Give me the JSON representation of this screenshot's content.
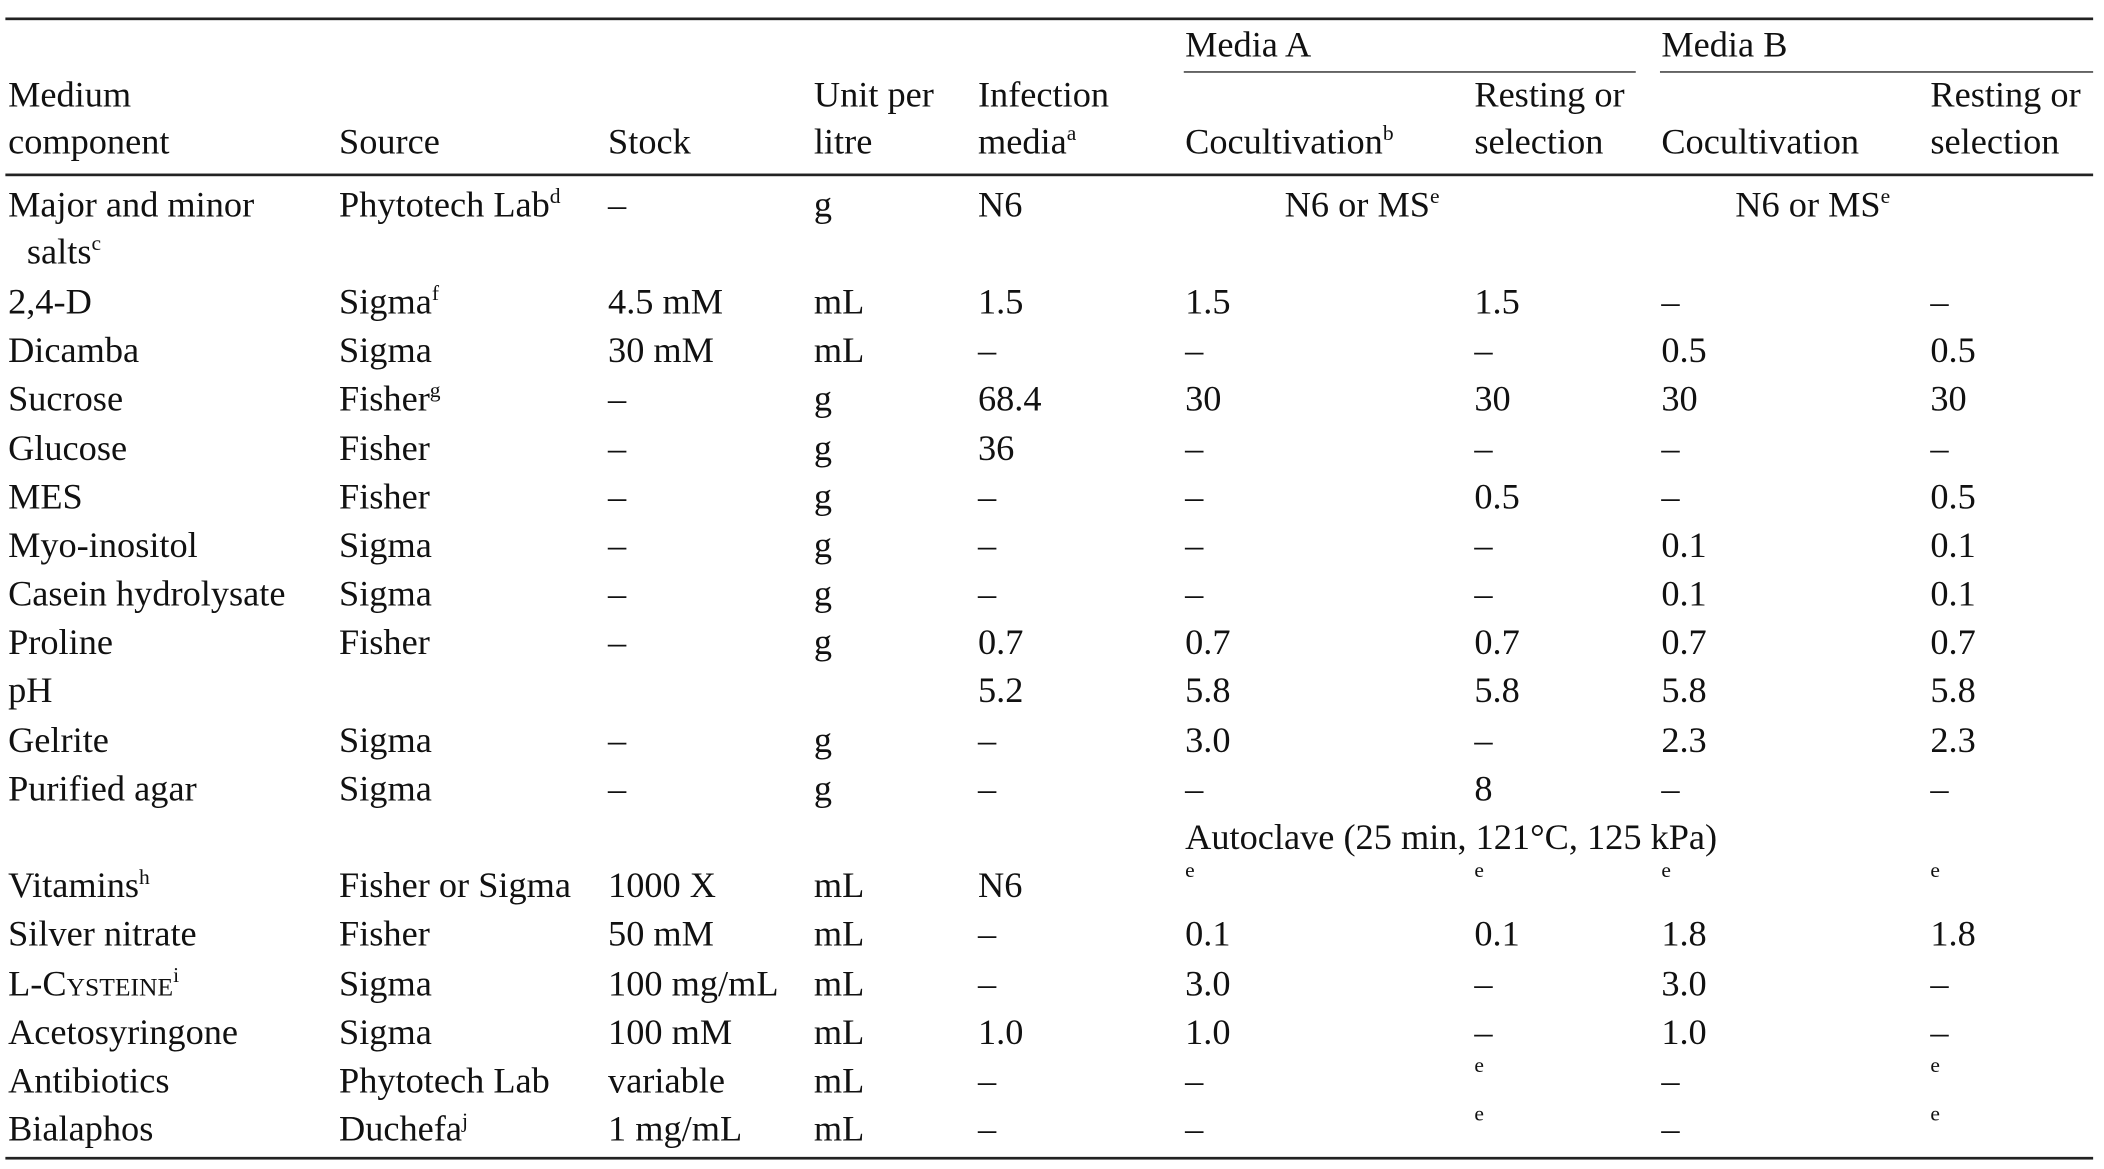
{
  "table": {
    "group_headers": {
      "media_a": "Media A",
      "media_b": "Media B"
    },
    "headers": {
      "medium_component": [
        "Medium",
        "component"
      ],
      "source": "Source",
      "stock": "Stock",
      "unit": [
        "Unit per",
        "litre"
      ],
      "infection": [
        "Infection",
        "media"
      ],
      "infection_sup": "a",
      "a_cocult": "Cocultivation",
      "a_cocult_sup": "b",
      "a_resting": [
        "Resting or",
        "selection"
      ],
      "b_cocult": "Cocultivation",
      "b_resting": [
        "Resting or",
        "selection"
      ]
    },
    "salts_row": {
      "component": [
        "Major and minor",
        "salts"
      ],
      "component_sup": "c",
      "source": "Phytotech Lab",
      "source_sup": "d",
      "stock": "–",
      "unit": "g",
      "infection": "N6",
      "media_a": "N6 or MS",
      "media_a_sup": "e",
      "media_b": "N6 or MS",
      "media_b_sup": "e"
    },
    "rows": [
      {
        "component": "2,4-D",
        "component_sup": "",
        "source": "Sigma",
        "source_sup": "f",
        "stock": "4.5 mM",
        "unit": "mL",
        "infection": "1.5",
        "a_cocult": "1.5",
        "a_resting": "1.5",
        "b_cocult": "–",
        "b_resting": "–"
      },
      {
        "component": "Dicamba",
        "component_sup": "",
        "source": "Sigma",
        "source_sup": "",
        "stock": "30 mM",
        "unit": "mL",
        "infection": "–",
        "a_cocult": "–",
        "a_resting": "–",
        "b_cocult": "0.5",
        "b_resting": "0.5"
      },
      {
        "component": "Sucrose",
        "component_sup": "",
        "source": "Fisher",
        "source_sup": "g",
        "stock": "–",
        "unit": "g",
        "infection": "68.4",
        "a_cocult": "30",
        "a_resting": "30",
        "b_cocult": "30",
        "b_resting": "30"
      },
      {
        "component": "Glucose",
        "component_sup": "",
        "source": "Fisher",
        "source_sup": "",
        "stock": "–",
        "unit": "g",
        "infection": "36",
        "a_cocult": "–",
        "a_resting": "–",
        "b_cocult": "–",
        "b_resting": "–"
      },
      {
        "component": "MES",
        "component_sup": "",
        "source": "Fisher",
        "source_sup": "",
        "stock": "–",
        "unit": "g",
        "infection": "–",
        "a_cocult": "–",
        "a_resting": "0.5",
        "b_cocult": "–",
        "b_resting": "0.5"
      },
      {
        "component": "Myo-inositol",
        "component_sup": "",
        "source": "Sigma",
        "source_sup": "",
        "stock": "–",
        "unit": "g",
        "infection": "–",
        "a_cocult": "–",
        "a_resting": "–",
        "b_cocult": "0.1",
        "b_resting": "0.1"
      },
      {
        "component": "Casein hydrolysate",
        "component_sup": "",
        "source": "Sigma",
        "source_sup": "",
        "stock": "–",
        "unit": "g",
        "infection": "–",
        "a_cocult": "–",
        "a_resting": "–",
        "b_cocult": "0.1",
        "b_resting": "0.1"
      },
      {
        "component": "Proline",
        "component_sup": "",
        "source": "Fisher",
        "source_sup": "",
        "stock": "–",
        "unit": "g",
        "infection": "0.7",
        "a_cocult": "0.7",
        "a_resting": "0.7",
        "b_cocult": "0.7",
        "b_resting": "0.7"
      },
      {
        "component": "pH",
        "component_sup": "",
        "source": "",
        "source_sup": "",
        "stock": "",
        "unit": "",
        "infection": "5.2",
        "a_cocult": "5.8",
        "a_resting": "5.8",
        "b_cocult": "5.8",
        "b_resting": "5.8"
      },
      {
        "component": "Gelrite",
        "component_sup": "",
        "source": "Sigma",
        "source_sup": "",
        "stock": "–",
        "unit": "g",
        "infection": "–",
        "a_cocult": "3.0",
        "a_resting": "–",
        "b_cocult": "2.3",
        "b_resting": "2.3"
      },
      {
        "component": "Purified agar",
        "component_sup": "",
        "source": "Sigma",
        "source_sup": "",
        "stock": "–",
        "unit": "g",
        "infection": "–",
        "a_cocult": "–",
        "a_resting": "8",
        "b_cocult": "–",
        "b_resting": "–"
      },
      {
        "span_note": "Autoclave (25 min, 121°C, 125 kPa)"
      },
      {
        "component": "Vitamins",
        "component_sup": "h",
        "source": "Fisher or Sigma",
        "source_sup": "",
        "stock": "1000 X",
        "unit": "mL",
        "infection": "N6",
        "a_cocult": "e",
        "a_resting": "e",
        "b_cocult": "e",
        "b_resting": "e",
        "marks": true
      },
      {
        "component": "Silver nitrate",
        "component_sup": "",
        "source": "Fisher",
        "source_sup": "",
        "stock": "50 mM",
        "unit": "mL",
        "infection": "–",
        "a_cocult": "0.1",
        "a_resting": "0.1",
        "b_cocult": "1.8",
        "b_resting": "1.8"
      },
      {
        "component": "L-Cysteine",
        "component_sc": true,
        "component_sup": "i",
        "source": "Sigma",
        "source_sup": "",
        "stock": "100 mg/mL",
        "unit": "mL",
        "infection": "–",
        "a_cocult": "3.0",
        "a_resting": "–",
        "b_cocult": "3.0",
        "b_resting": "–"
      },
      {
        "component": "Acetosyringone",
        "component_sup": "",
        "source": "Sigma",
        "source_sup": "",
        "stock": "100 mM",
        "unit": "mL",
        "infection": "1.0",
        "a_cocult": "1.0",
        "a_resting": "–",
        "b_cocult": "1.0",
        "b_resting": "–"
      },
      {
        "component": "Antibiotics",
        "component_sup": "",
        "source": "Phytotech Lab",
        "source_sup": "",
        "stock": "variable",
        "unit": "mL",
        "infection": "–",
        "a_cocult": "–",
        "a_resting": "e",
        "b_cocult": "–",
        "b_resting": "e",
        "marks_resting": true
      },
      {
        "component": "Bialaphos",
        "component_sup": "",
        "source": "Duchefa",
        "source_sup": "j",
        "stock": "1 mg/mL",
        "unit": "mL",
        "infection": "–",
        "a_cocult": "–",
        "a_resting": "e",
        "b_cocult": "–",
        "b_resting": "e",
        "marks_resting": true
      }
    ]
  }
}
